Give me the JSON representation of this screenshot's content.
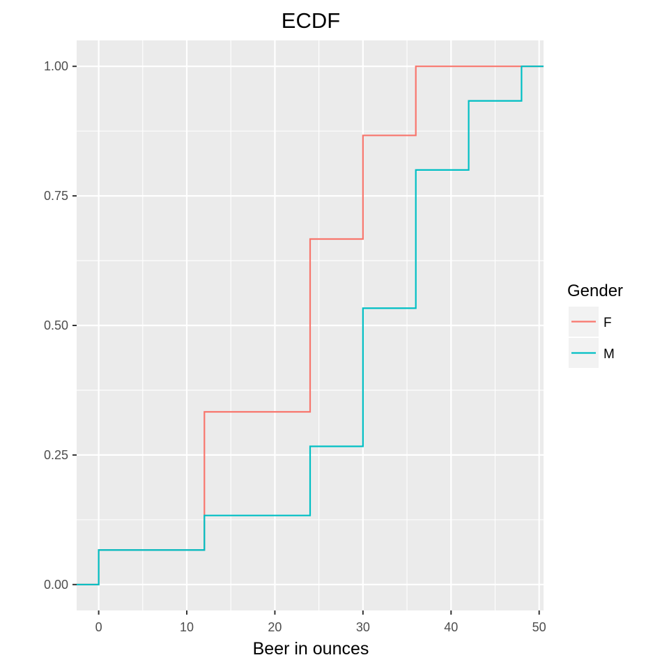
{
  "chart_data": {
    "type": "line",
    "step": true,
    "title": "ECDF",
    "xlabel": "Beer in ounces",
    "ylabel": "",
    "xlim": [
      -2.5,
      50.5
    ],
    "ylim": [
      -0.05,
      1.05
    ],
    "x_ticks": [
      0,
      10,
      20,
      30,
      40,
      50
    ],
    "x_tick_labels": [
      "0",
      "10",
      "20",
      "30",
      "40",
      "50"
    ],
    "y_ticks": [
      0,
      0.25,
      0.5,
      0.75,
      1.0
    ],
    "y_tick_labels": [
      "0.00",
      "0.25",
      "0.50",
      "0.75",
      "1.00"
    ],
    "grid": true,
    "legend": {
      "title": "Gender",
      "position": "right"
    },
    "series": [
      {
        "name": "F",
        "color": "#F8766D",
        "x": [
          -2.5,
          0,
          12,
          24,
          30,
          36,
          50.5
        ],
        "y": [
          0,
          0.0667,
          0.3333,
          0.6667,
          0.8667,
          1.0,
          1.0
        ]
      },
      {
        "name": "M",
        "color": "#00BFC4",
        "x": [
          -2.5,
          0,
          12,
          24,
          30,
          36,
          42,
          48,
          50.5
        ],
        "y": [
          0,
          0.0667,
          0.1333,
          0.2667,
          0.5333,
          0.8,
          0.9333,
          1.0,
          1.0
        ]
      }
    ]
  }
}
